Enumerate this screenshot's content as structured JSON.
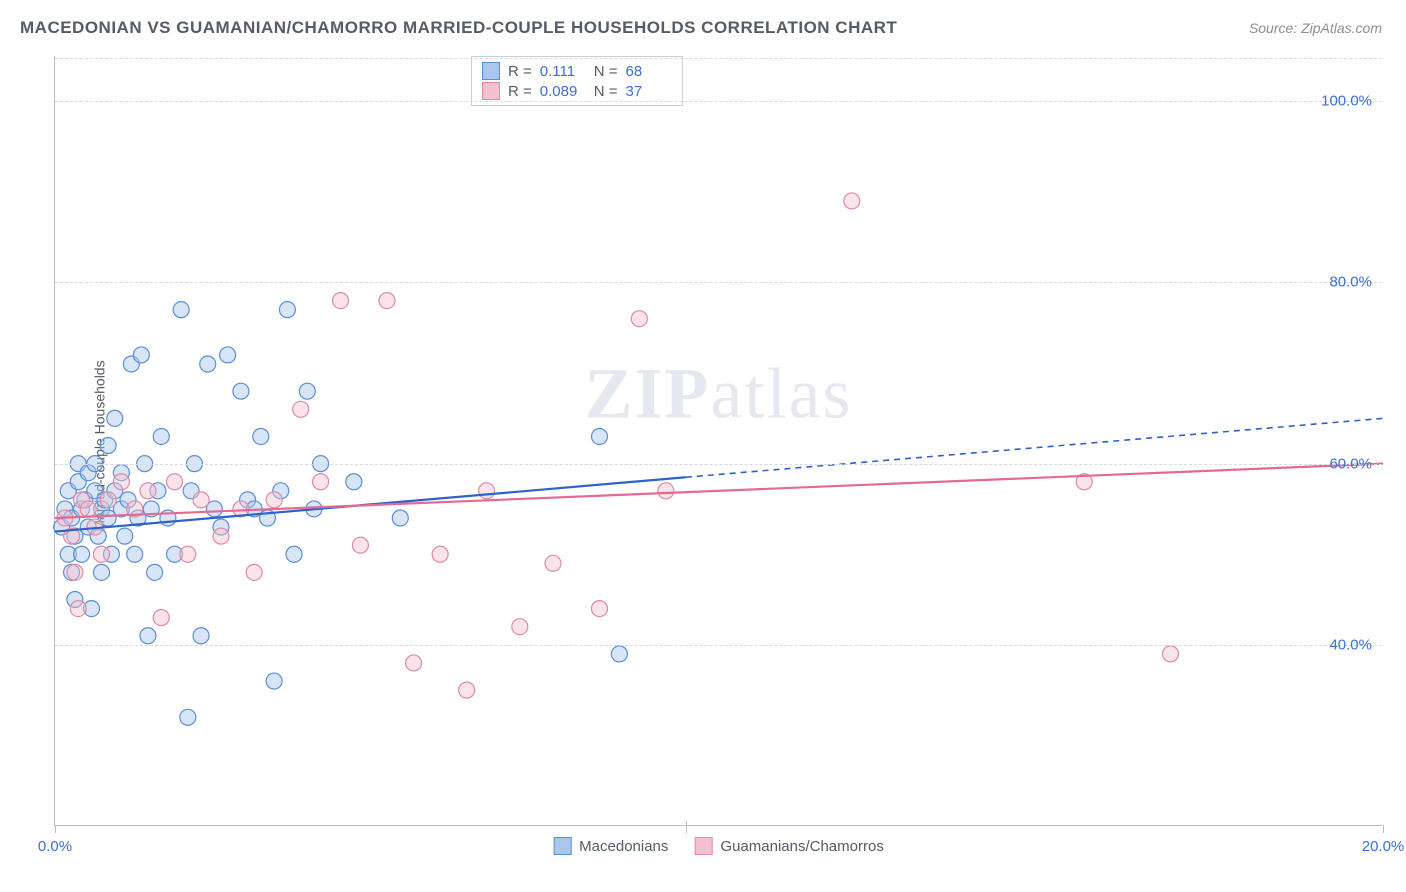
{
  "title": "MACEDONIAN VS GUAMANIAN/CHAMORRO MARRIED-COUPLE HOUSEHOLDS CORRELATION CHART",
  "source": "Source: ZipAtlas.com",
  "watermark": {
    "bold": "ZIP",
    "light": "atlas"
  },
  "y_axis_label": "Married-couple Households",
  "chart": {
    "type": "scatter",
    "xlim": [
      0,
      20
    ],
    "ylim": [
      20,
      105
    ],
    "x_ticks": [
      0,
      20
    ],
    "x_tick_labels": [
      "0.0%",
      "20.0%"
    ],
    "y_ticks": [
      40,
      60,
      80,
      100
    ],
    "y_tick_labels": [
      "40.0%",
      "60.0%",
      "80.0%",
      "100.0%"
    ],
    "grid_color": "#d5dae2",
    "axis_color": "#b8bec8",
    "background_color": "#ffffff",
    "tick_label_color": "#3b6fd6",
    "marker_radius": 8,
    "marker_opacity": 0.45,
    "marker_stroke_width": 1.2
  },
  "series": [
    {
      "name": "Macedonians",
      "color_fill": "#a9c6ec",
      "color_stroke": "#5a8fd6",
      "trend_color": "#2e62c9",
      "stats": {
        "R": "0.111",
        "N": "68"
      },
      "trend": {
        "x1": 0,
        "y1": 52.5,
        "x2": 9.5,
        "y2": 58.5,
        "x2_ext": 20,
        "y2_ext": 65.0
      },
      "points": [
        [
          0.1,
          53
        ],
        [
          0.15,
          55
        ],
        [
          0.2,
          50
        ],
        [
          0.2,
          57
        ],
        [
          0.25,
          48
        ],
        [
          0.25,
          54
        ],
        [
          0.3,
          45
        ],
        [
          0.3,
          52
        ],
        [
          0.35,
          58
        ],
        [
          0.35,
          60
        ],
        [
          0.4,
          55
        ],
        [
          0.4,
          50
        ],
        [
          0.45,
          56
        ],
        [
          0.5,
          53
        ],
        [
          0.5,
          59
        ],
        [
          0.55,
          44
        ],
        [
          0.6,
          57
        ],
        [
          0.6,
          60
        ],
        [
          0.65,
          52
        ],
        [
          0.7,
          55
        ],
        [
          0.7,
          48
        ],
        [
          0.75,
          56
        ],
        [
          0.8,
          54
        ],
        [
          0.8,
          62
        ],
        [
          0.85,
          50
        ],
        [
          0.9,
          57
        ],
        [
          0.9,
          65
        ],
        [
          1.0,
          55
        ],
        [
          1.0,
          59
        ],
        [
          1.05,
          52
        ],
        [
          1.1,
          56
        ],
        [
          1.15,
          71
        ],
        [
          1.2,
          50
        ],
        [
          1.25,
          54
        ],
        [
          1.3,
          72
        ],
        [
          1.35,
          60
        ],
        [
          1.4,
          41
        ],
        [
          1.45,
          55
        ],
        [
          1.5,
          48
        ],
        [
          1.55,
          57
        ],
        [
          1.6,
          63
        ],
        [
          1.7,
          54
        ],
        [
          1.8,
          50
        ],
        [
          1.9,
          77
        ],
        [
          2.0,
          32
        ],
        [
          2.05,
          57
        ],
        [
          2.1,
          60
        ],
        [
          2.2,
          41
        ],
        [
          2.3,
          71
        ],
        [
          2.4,
          55
        ],
        [
          2.5,
          53
        ],
        [
          2.6,
          72
        ],
        [
          2.8,
          68
        ],
        [
          2.9,
          56
        ],
        [
          3.0,
          55
        ],
        [
          3.1,
          63
        ],
        [
          3.2,
          54
        ],
        [
          3.3,
          36
        ],
        [
          3.4,
          57
        ],
        [
          3.5,
          77
        ],
        [
          3.6,
          50
        ],
        [
          3.8,
          68
        ],
        [
          3.9,
          55
        ],
        [
          4.0,
          60
        ],
        [
          4.5,
          58
        ],
        [
          5.2,
          54
        ],
        [
          8.2,
          63
        ],
        [
          8.5,
          39
        ]
      ]
    },
    {
      "name": "Guamanians/Chamorros",
      "color_fill": "#f4c1cf",
      "color_stroke": "#e08ba5",
      "trend_color": "#e36a93",
      "stats": {
        "R": "0.089",
        "N": "37"
      },
      "trend": {
        "x1": 0,
        "y1": 54.0,
        "x2": 20,
        "y2": 60.0,
        "x2_ext": 20,
        "y2_ext": 60.0
      },
      "points": [
        [
          0.15,
          54
        ],
        [
          0.25,
          52
        ],
        [
          0.3,
          48
        ],
        [
          0.35,
          44
        ],
        [
          0.4,
          56
        ],
        [
          0.5,
          55
        ],
        [
          0.6,
          53
        ],
        [
          0.7,
          50
        ],
        [
          0.8,
          56
        ],
        [
          1.0,
          58
        ],
        [
          1.2,
          55
        ],
        [
          1.4,
          57
        ],
        [
          1.6,
          43
        ],
        [
          1.8,
          58
        ],
        [
          2.0,
          50
        ],
        [
          2.2,
          56
        ],
        [
          2.5,
          52
        ],
        [
          2.8,
          55
        ],
        [
          3.0,
          48
        ],
        [
          3.3,
          56
        ],
        [
          3.7,
          66
        ],
        [
          4.0,
          58
        ],
        [
          4.3,
          78
        ],
        [
          4.6,
          51
        ],
        [
          5.0,
          78
        ],
        [
          5.4,
          38
        ],
        [
          5.8,
          50
        ],
        [
          6.2,
          35
        ],
        [
          6.5,
          57
        ],
        [
          7.0,
          42
        ],
        [
          7.5,
          49
        ],
        [
          8.2,
          44
        ],
        [
          8.8,
          76
        ],
        [
          9.2,
          57
        ],
        [
          12.0,
          89
        ],
        [
          15.5,
          58
        ],
        [
          16.8,
          39
        ]
      ]
    }
  ],
  "stats_box": {
    "rows": [
      {
        "swatch_fill": "#a9c6ec",
        "swatch_stroke": "#5a8fd6",
        "R_label": "R =",
        "R": "0.111",
        "N_label": "N =",
        "N": "68"
      },
      {
        "swatch_fill": "#f4c1cf",
        "swatch_stroke": "#e08ba5",
        "R_label": "R =",
        "R": "0.089",
        "N_label": "N =",
        "N": "37"
      }
    ]
  },
  "legend": [
    {
      "swatch_fill": "#a9c6ec",
      "swatch_stroke": "#5a8fd6",
      "label": "Macedonians"
    },
    {
      "swatch_fill": "#f4c1cf",
      "swatch_stroke": "#e08ba5",
      "label": "Guamanians/Chamorros"
    }
  ]
}
